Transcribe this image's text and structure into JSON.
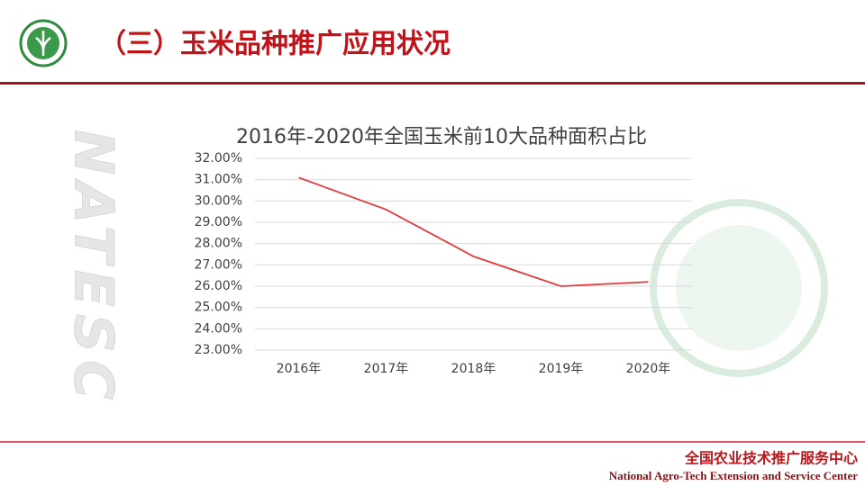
{
  "header": {
    "title": "（三）玉米品种推广应用状况"
  },
  "watermark": "NATESC",
  "footer": {
    "org_cn": "全国农业技术推广服务中心",
    "org_en": "National Agro-Tech Extension and Service Center"
  },
  "chart_data": {
    "type": "line",
    "title": "2016年-2020年全国玉米前10大品种面积占比",
    "categories": [
      "2016年",
      "2017年",
      "2018年",
      "2019年",
      "2020年"
    ],
    "series": [
      {
        "name": "面积占比",
        "color": "#e03a3e",
        "values": [
          31.1,
          29.6,
          27.4,
          26.0,
          26.2
        ]
      }
    ],
    "ylim": [
      23,
      32
    ],
    "yticks": [
      {
        "value": 23,
        "label": "23.00%"
      },
      {
        "value": 24,
        "label": "24.00%"
      },
      {
        "value": 25,
        "label": "25.00%"
      },
      {
        "value": 26,
        "label": "26.00%"
      },
      {
        "value": 27,
        "label": "27.00%"
      },
      {
        "value": 28,
        "label": "28.00%"
      },
      {
        "value": 29,
        "label": "29.00%"
      },
      {
        "value": 30,
        "label": "30.00%"
      },
      {
        "value": 31,
        "label": "31.00%"
      },
      {
        "value": 32,
        "label": "32.00%"
      }
    ],
    "grid": true
  }
}
